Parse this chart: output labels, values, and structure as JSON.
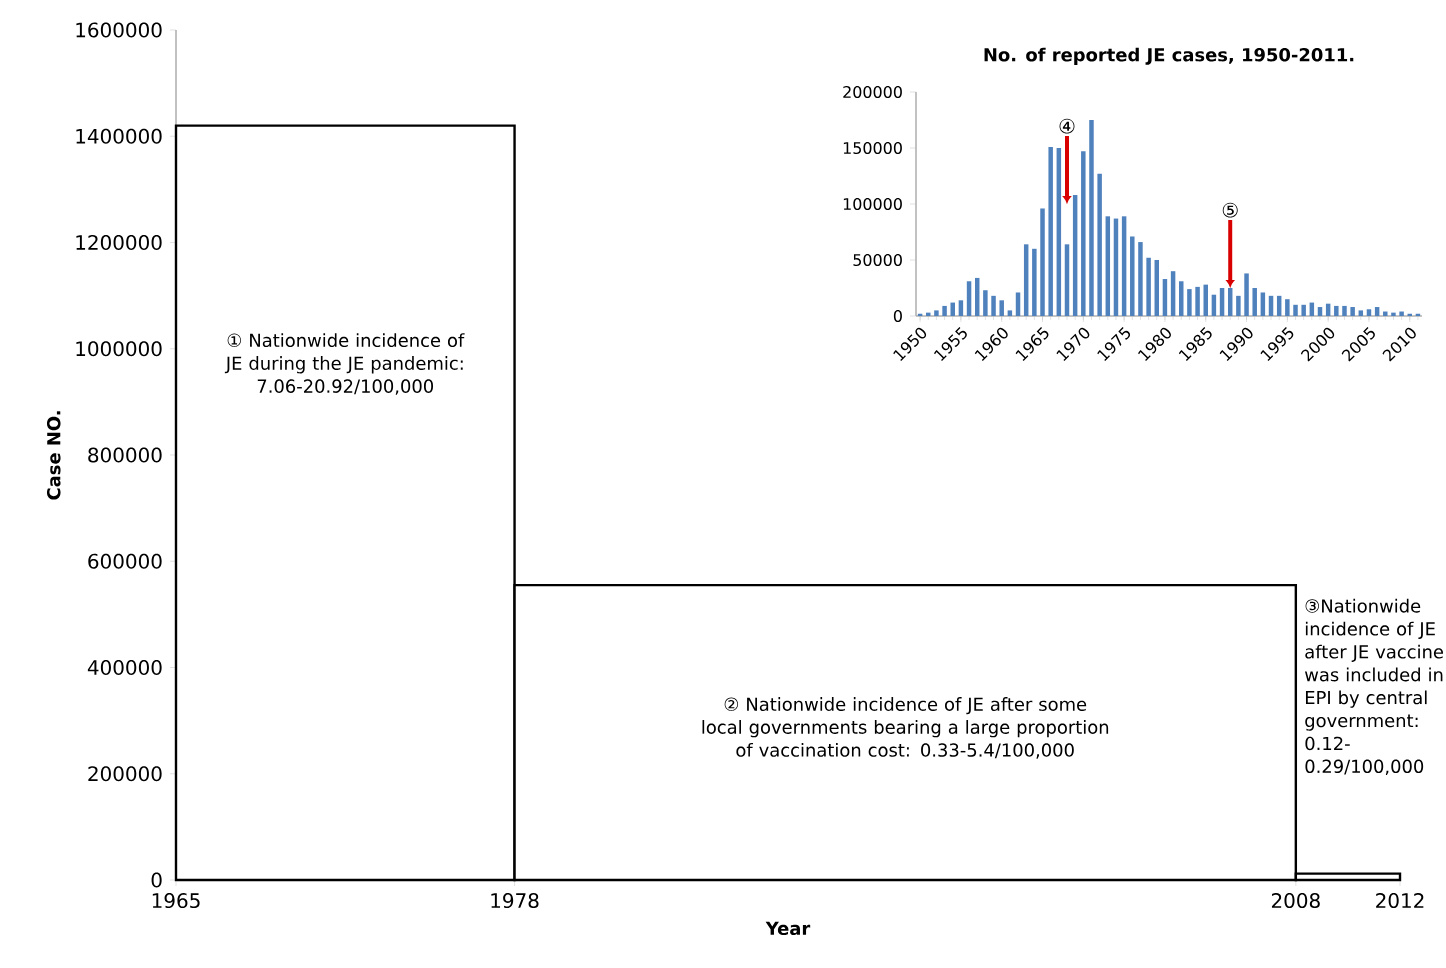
{
  "chart_data": [
    {
      "type": "histogram",
      "xlabel": "Year",
      "ylabel": "Case NO.",
      "bins": [
        1965,
        1978,
        2008,
        2012
      ],
      "values": [
        1420000,
        555000,
        12000
      ],
      "color": "#000000",
      "xlim": [
        1965,
        2012
      ],
      "xticks": [
        1965,
        1978,
        2008,
        2012
      ],
      "ylim": [
        0,
        1600000
      ],
      "yticks": [
        0,
        200000,
        400000,
        600000,
        800000,
        1000000,
        1200000,
        1400000,
        1600000
      ],
      "annotations": [
        "① Nationwide incidence of JE during the JE pandemic: 7.06-20.92/100,000",
        "② Nationwide incidence of JE after some local governments bearing a large proportion of vaccination cost: 0.33-5.4/100,000",
        "③Nationwide incidence of JE after JE vaccine was included in EPI by central government: 0.12-0.29/100,000"
      ]
    },
    {
      "type": "bar",
      "title": "No. of reported JE cases, 1950-2011.",
      "color": "#4f81bd",
      "x": [
        1950,
        1951,
        1952,
        1953,
        1954,
        1955,
        1956,
        1957,
        1958,
        1959,
        1960,
        1961,
        1962,
        1963,
        1964,
        1965,
        1966,
        1967,
        1968,
        1969,
        1970,
        1971,
        1972,
        1973,
        1974,
        1975,
        1976,
        1977,
        1978,
        1979,
        1980,
        1981,
        1982,
        1983,
        1984,
        1985,
        1986,
        1987,
        1988,
        1989,
        1990,
        1991,
        1992,
        1993,
        1994,
        1995,
        1996,
        1997,
        1998,
        1999,
        2000,
        2001,
        2002,
        2003,
        2004,
        2005,
        2006,
        2007,
        2008,
        2009,
        2010,
        2011
      ],
      "values": [
        2000,
        3000,
        5000,
        9000,
        12000,
        14000,
        31000,
        34000,
        23000,
        18000,
        14000,
        5000,
        21000,
        64000,
        60000,
        96000,
        151000,
        150000,
        64000,
        108000,
        147000,
        175000,
        127000,
        89000,
        87000,
        89000,
        71000,
        66000,
        52000,
        50000,
        33000,
        40000,
        31000,
        24000,
        26000,
        28000,
        19000,
        25000,
        25000,
        18000,
        38000,
        25000,
        21000,
        18000,
        18000,
        15000,
        10000,
        10000,
        12000,
        8000,
        11000,
        9000,
        9000,
        8000,
        5000,
        6000,
        8000,
        4000,
        3000,
        4000,
        2000,
        2000
      ],
      "xlim": [
        1949.5,
        2011.5
      ],
      "xticks": [
        1950,
        1955,
        1960,
        1965,
        1970,
        1975,
        1980,
        1985,
        1990,
        1995,
        2000,
        2005,
        2010
      ],
      "ylim": [
        0,
        200000
      ],
      "yticks": [
        0,
        50000,
        100000,
        150000,
        200000
      ],
      "annotations": [
        {
          "text": "④",
          "x": 1968,
          "y": 100000
        },
        {
          "text": "⑤",
          "x": 1988,
          "y": 25000
        }
      ]
    }
  ]
}
